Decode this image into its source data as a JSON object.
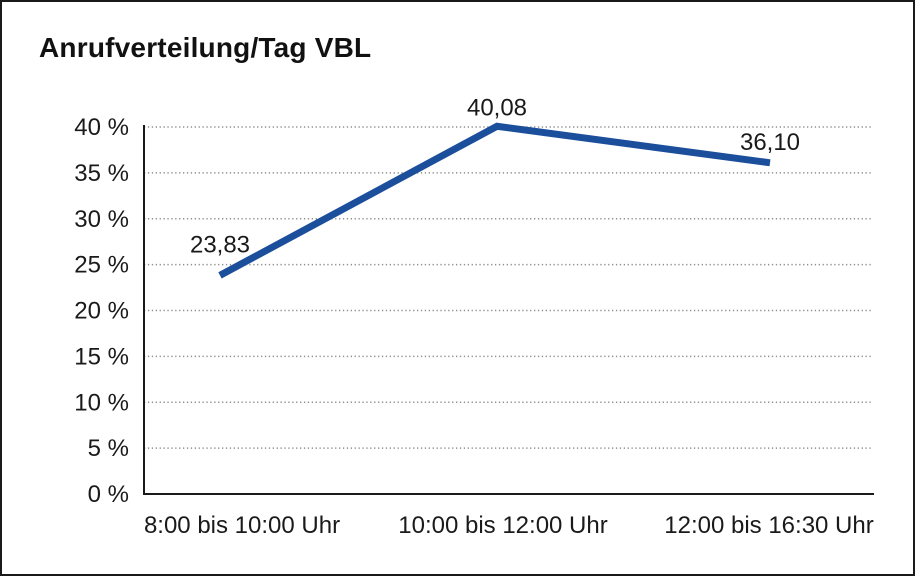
{
  "chart_data": {
    "type": "line",
    "title": "Anrufverteilung/Tag VBL",
    "categories": [
      "8:00 bis 10:00 Uhr",
      "10:00 bis 12:00 Uhr",
      "12:00 bis 16:30 Uhr"
    ],
    "values": [
      23.83,
      40.08,
      36.1
    ],
    "point_labels": [
      "23,83",
      "40,08",
      "36,10"
    ],
    "xlabel": "",
    "ylabel": "",
    "ylim": [
      0,
      40
    ],
    "ytick_step": 5,
    "ytick_values": [
      0,
      5,
      10,
      15,
      20,
      25,
      30,
      35,
      40
    ],
    "ytick_labels": [
      "0 %",
      "5 %",
      "10 %",
      "15 %",
      "20 %",
      "25 %",
      "30 %",
      "35 %",
      "40 %"
    ],
    "grid": "horizontal-dotted",
    "legend": "none",
    "colors": {
      "line": "#1b4e9b",
      "axis": "#1a1a1a",
      "gridline": "#8f8f8f",
      "text": "#1a1a1a",
      "background": "#ffffff",
      "border": "#1a1a1a"
    }
  }
}
